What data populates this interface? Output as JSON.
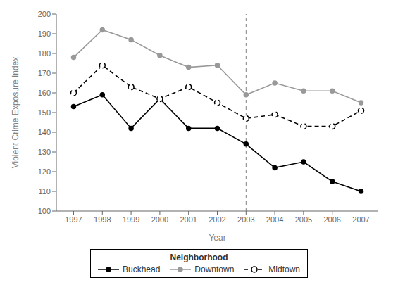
{
  "chart_data": {
    "type": "line",
    "xlabel": "Year",
    "ylabel": "Violent Crime Exposure Index",
    "legend_title": "Neighborhood",
    "x": [
      1997,
      1998,
      1999,
      2000,
      2001,
      2002,
      2003,
      2004,
      2005,
      2006,
      2007
    ],
    "series": [
      {
        "name": "Buckhead",
        "color": "#000000",
        "marker": "circle",
        "line_style": "solid",
        "values": [
          153,
          159,
          142,
          157,
          142,
          142,
          134,
          122,
          125,
          115,
          110
        ]
      },
      {
        "name": "Downtown",
        "color": "#999999",
        "marker": "circle",
        "line_style": "solid",
        "values": [
          178,
          192,
          187,
          179,
          173,
          174,
          159,
          165,
          161,
          161,
          155
        ]
      },
      {
        "name": "Midtown",
        "color": "#000000",
        "marker": "open_circle",
        "line_style": "dashed",
        "values": [
          160,
          174,
          163,
          157,
          163,
          155,
          147,
          149,
          143,
          143,
          151
        ]
      }
    ],
    "xlim": [
      1996.4,
      2007.6
    ],
    "xticks": [
      1997,
      1998,
      1999,
      2000,
      2001,
      2002,
      2003,
      2004,
      2005,
      2006,
      2007
    ],
    "ylim": [
      100,
      200
    ],
    "yticks": [
      100,
      110,
      120,
      130,
      140,
      150,
      160,
      170,
      180,
      190,
      200
    ],
    "vline_x": 2003,
    "grid": false,
    "legend": "bottom"
  }
}
